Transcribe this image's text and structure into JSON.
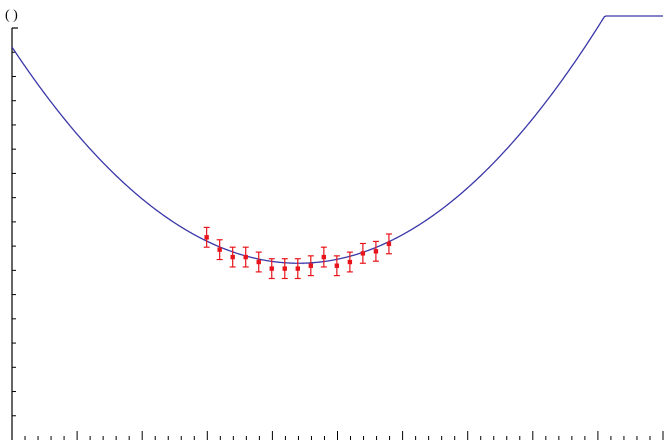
{
  "chart_data": {
    "type": "scatter",
    "title": "",
    "xlabel": "",
    "ylabel": "( )",
    "xlim": [
      0,
      1
    ],
    "ylim": [
      0,
      1
    ],
    "x_tick_count": 50,
    "x_major_every": 5,
    "y_tick_count": 16,
    "colors": {
      "fit": "#3a37a8",
      "points": "#e8141b",
      "axis": "#000000"
    },
    "series": [
      {
        "kind": "fit_curve",
        "function": "parabola",
        "vertex": [
          0.44,
          0.429
        ],
        "curvature": 2.71
      },
      {
        "kind": "data_with_error_bars",
        "points": [
          {
            "x": 0.299,
            "y": 0.492,
            "err": 0.024
          },
          {
            "x": 0.319,
            "y": 0.462,
            "err": 0.024
          },
          {
            "x": 0.339,
            "y": 0.444,
            "err": 0.024
          },
          {
            "x": 0.359,
            "y": 0.444,
            "err": 0.024
          },
          {
            "x": 0.379,
            "y": 0.432,
            "err": 0.024
          },
          {
            "x": 0.399,
            "y": 0.416,
            "err": 0.024
          },
          {
            "x": 0.419,
            "y": 0.416,
            "err": 0.024
          },
          {
            "x": 0.439,
            "y": 0.416,
            "err": 0.024
          },
          {
            "x": 0.459,
            "y": 0.423,
            "err": 0.024
          },
          {
            "x": 0.479,
            "y": 0.444,
            "err": 0.024
          },
          {
            "x": 0.499,
            "y": 0.423,
            "err": 0.024
          },
          {
            "x": 0.519,
            "y": 0.432,
            "err": 0.024
          },
          {
            "x": 0.539,
            "y": 0.453,
            "err": 0.024
          },
          {
            "x": 0.559,
            "y": 0.458,
            "err": 0.024
          },
          {
            "x": 0.579,
            "y": 0.476,
            "err": 0.024
          }
        ]
      }
    ],
    "grid": false,
    "legend": "none"
  }
}
